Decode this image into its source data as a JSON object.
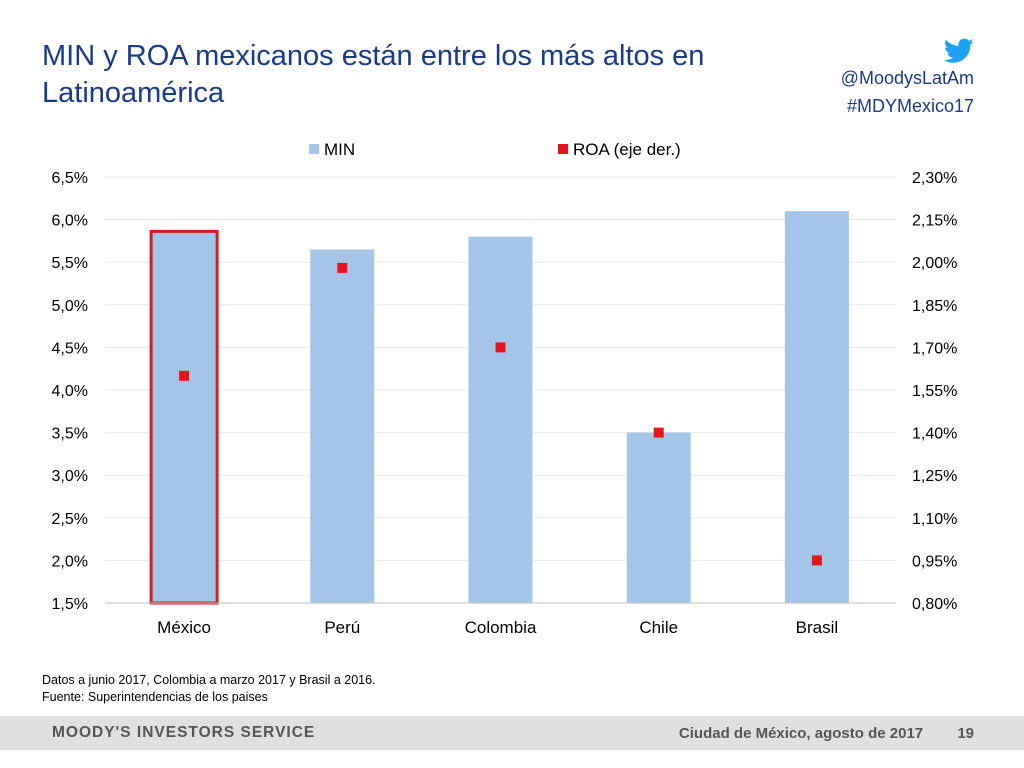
{
  "slide": {
    "title": "MIN y ROA mexicanos están entre los más altos en Latinoamérica",
    "handle": "@MoodysLatAm",
    "hashtag": "#MDYMexico17",
    "footnote_1": "Datos a junio 2017, Colombia a marzo 2017 y Brasil a 2016.",
    "footnote_2": "Fuente: Superintendencias de los paises",
    "brand": "MOODY'S INVESTORS SERVICE",
    "location_date": "Ciudad de México, agosto de 2017",
    "page_number": "19",
    "twitter_icon": "twitter-bird-icon",
    "title_color": "#1a3a8c"
  },
  "chart_data": {
    "type": "bar",
    "categories": [
      "México",
      "Perú",
      "Colombia",
      "Chile",
      "Brasil"
    ],
    "series": [
      {
        "name": "MIN",
        "type": "bar",
        "axis": "left",
        "color": "#a3c6e8",
        "values": [
          5.85,
          5.65,
          5.8,
          3.5,
          6.1
        ]
      },
      {
        "name": "ROA (eje der.)",
        "type": "scatter",
        "axis": "right",
        "color": "#e8141c",
        "values": [
          1.6,
          1.98,
          1.7,
          1.4,
          0.95
        ]
      }
    ],
    "y_left": {
      "ylim": [
        1.5,
        6.5
      ],
      "ticks": [
        "1,5%",
        "2,0%",
        "2,5%",
        "3,0%",
        "3,5%",
        "4,0%",
        "4,5%",
        "5,0%",
        "5,5%",
        "6,0%",
        "6,5%"
      ]
    },
    "y_right": {
      "ylim": [
        0.8,
        2.3
      ],
      "ticks": [
        "0,80%",
        "0,95%",
        "1,10%",
        "1,25%",
        "1,40%",
        "1,55%",
        "1,70%",
        "1,85%",
        "2,00%",
        "2,15%",
        "2,30%"
      ]
    },
    "highlight_category": "México",
    "highlight_color": "#d41c24",
    "grid": true,
    "legend_position": "top"
  }
}
